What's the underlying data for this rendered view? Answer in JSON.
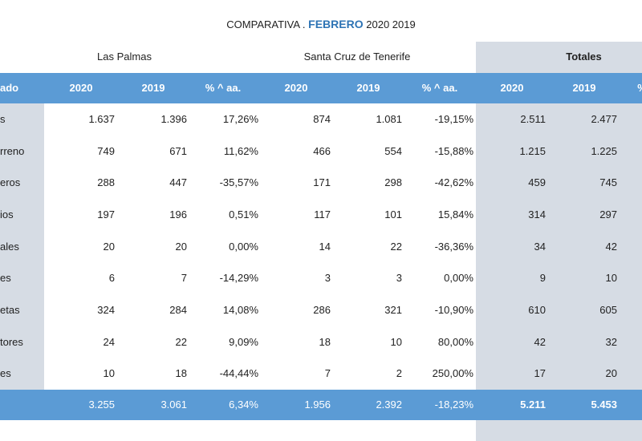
{
  "title": {
    "prefix": "COMPARATIVA .",
    "month": "FEBRERO",
    "years": "2020 2019"
  },
  "regions": {
    "las_palmas": "Las Palmas",
    "santa_cruz": "Santa Cruz de Tenerife",
    "totales": "Totales"
  },
  "header": {
    "label": "ado",
    "cols": [
      "2020",
      "2019",
      "% ^ aa.",
      "2020",
      "2019",
      "% ^ aa.",
      "2020",
      "2019",
      "%"
    ]
  },
  "rows": [
    {
      "label": "s",
      "values": [
        "1.637",
        "1.396",
        "17,26%",
        "874",
        "1.081",
        "-19,15%",
        "2.511",
        "2.477"
      ]
    },
    {
      "label": "rreno",
      "values": [
        "749",
        "671",
        "11,62%",
        "466",
        "554",
        "-15,88%",
        "1.215",
        "1.225"
      ]
    },
    {
      "label": "eros",
      "values": [
        "288",
        "447",
        "-35,57%",
        "171",
        "298",
        "-42,62%",
        "459",
        "745"
      ]
    },
    {
      "label": "ios",
      "values": [
        "197",
        "196",
        "0,51%",
        "117",
        "101",
        "15,84%",
        "314",
        "297"
      ]
    },
    {
      "label": "ales",
      "values": [
        "20",
        "20",
        "0,00%",
        "14",
        "22",
        "-36,36%",
        "34",
        "42"
      ]
    },
    {
      "label": "es",
      "values": [
        "6",
        "7",
        "-14,29%",
        "3",
        "3",
        "0,00%",
        "9",
        "10"
      ]
    },
    {
      "label": "etas",
      "values": [
        "324",
        "284",
        "14,08%",
        "286",
        "321",
        "-10,90%",
        "610",
        "605"
      ]
    },
    {
      "label": "tores",
      "values": [
        "24",
        "22",
        "9,09%",
        "18",
        "10",
        "80,00%",
        "42",
        "32"
      ]
    },
    {
      "label": "es",
      "values": [
        "10",
        "18",
        "-44,44%",
        "7",
        "2",
        "250,00%",
        "17",
        "20"
      ]
    }
  ],
  "footer": {
    "values": [
      "3.255",
      "3.061",
      "6,34%",
      "1.956",
      "2.392",
      "-18,23%",
      "5.211",
      "5.453"
    ]
  }
}
